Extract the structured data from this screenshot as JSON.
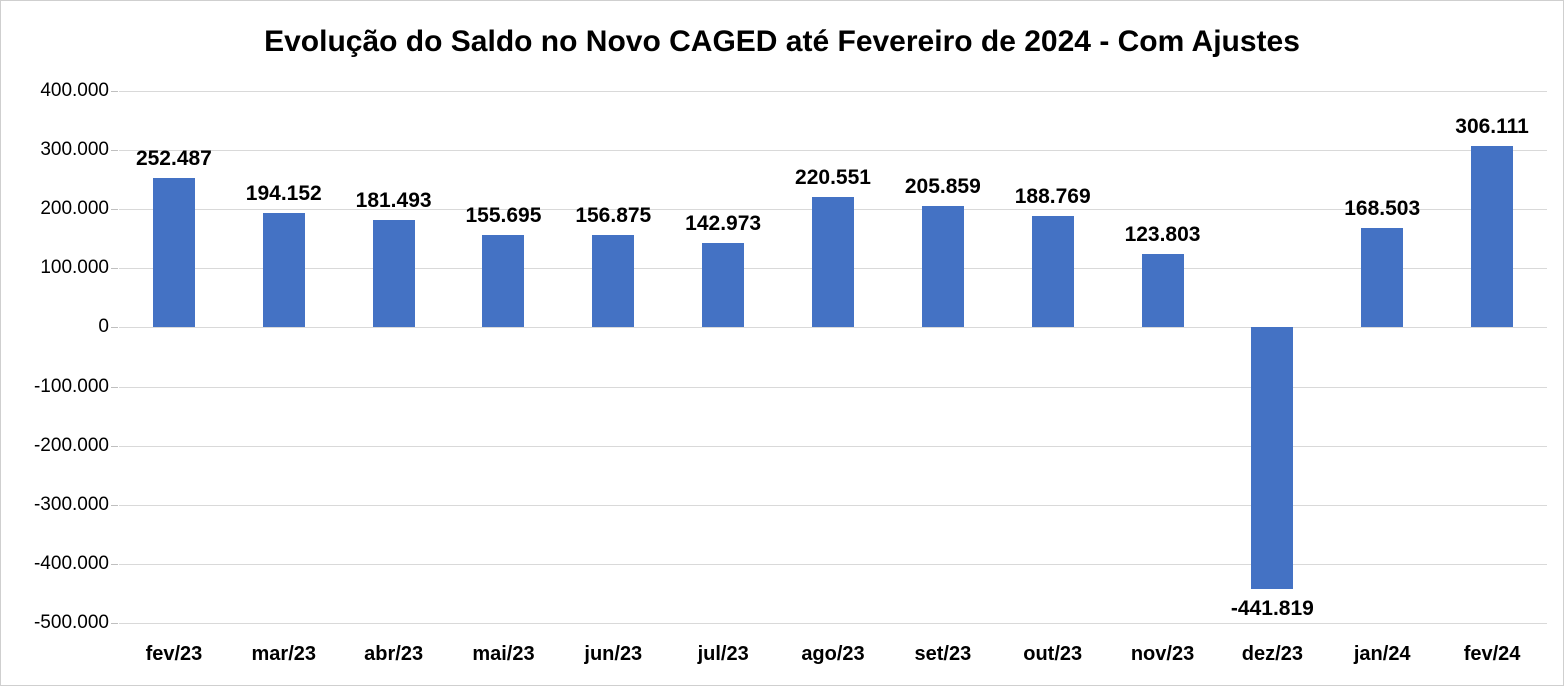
{
  "chart_data": {
    "type": "bar",
    "title": "Evolução do Saldo no Novo CAGED até Fevereiro de 2024 - Com Ajustes",
    "categories": [
      "fev/23",
      "mar/23",
      "abr/23",
      "mai/23",
      "jun/23",
      "jul/23",
      "ago/23",
      "set/23",
      "out/23",
      "nov/23",
      "dez/23",
      "jan/24",
      "fev/24"
    ],
    "values": [
      252487,
      194152,
      181493,
      155695,
      156875,
      142973,
      220551,
      205859,
      188769,
      123803,
      -441819,
      168503,
      306111
    ],
    "value_labels": [
      "252.487",
      "194.152",
      "181.493",
      "155.695",
      "156.875",
      "142.973",
      "220.551",
      "205.859",
      "188.769",
      "123.803",
      "-441.819",
      "168.503",
      "306.111"
    ],
    "xlabel": "",
    "ylabel": "",
    "ylim": [
      -500000,
      400000
    ],
    "ytick_step": 100000,
    "ytick_labels": [
      "400.000",
      "300.000",
      "200.000",
      "100.000",
      "0",
      "-100.000",
      "-200.000",
      "-300.000",
      "-400.000",
      "-500.000"
    ],
    "bar_color": "#4472C4",
    "grid": true,
    "gridline_color": "#d9d9d9",
    "legend_position": "none"
  }
}
